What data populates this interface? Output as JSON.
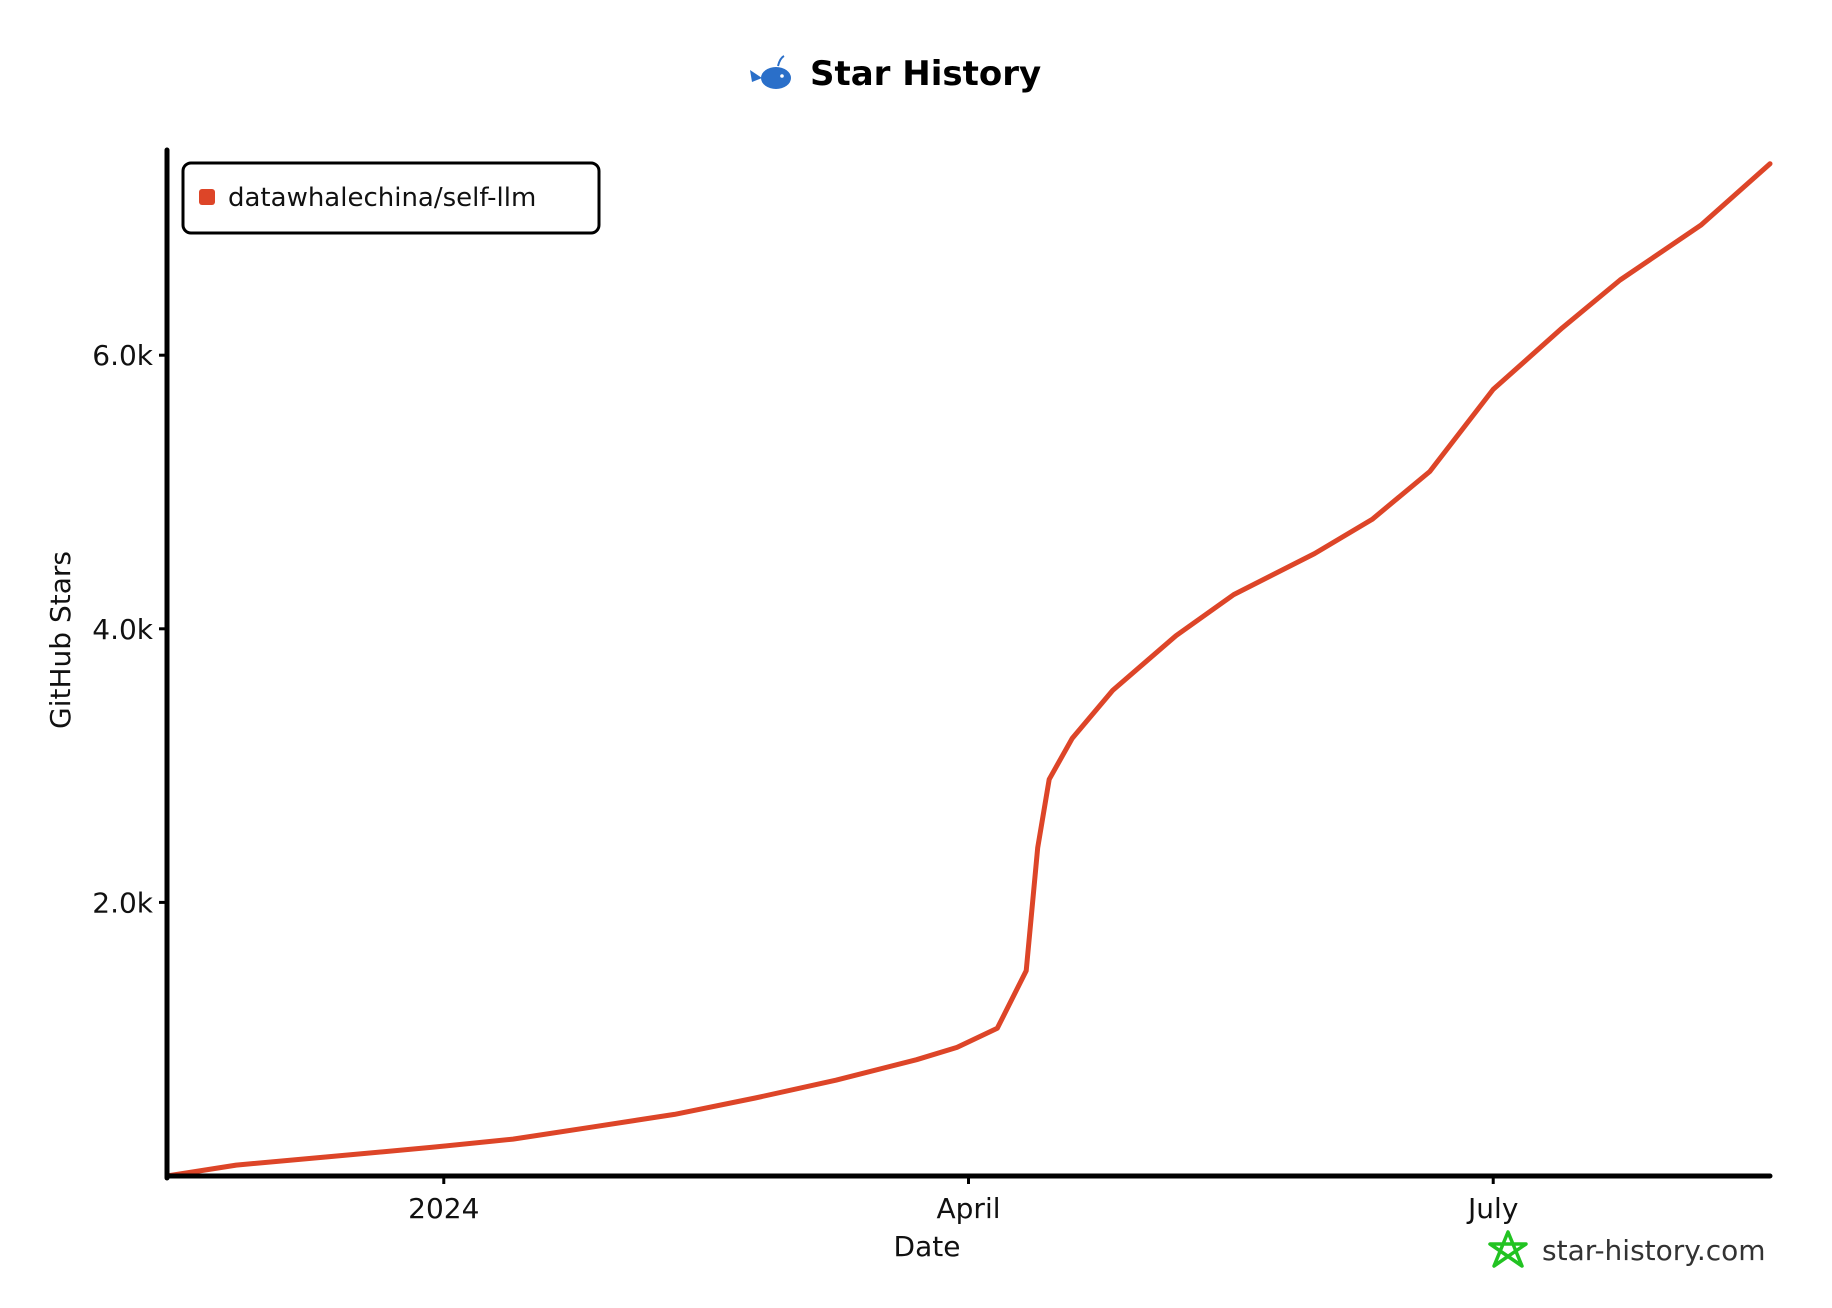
{
  "title": "Star History",
  "watermark": "star-history.com",
  "colors": {
    "series": "#dd4528",
    "axis": "#000000",
    "watermark_icon": "#22c322",
    "whale": "#2a6fc9"
  },
  "chart_data": {
    "type": "line",
    "title": "Star History",
    "xlabel": "Date",
    "ylabel": "GitHub Stars",
    "x_ticks": [
      {
        "label": "2024",
        "date": "2024-01-01"
      },
      {
        "label": "April",
        "date": "2024-04-01"
      },
      {
        "label": "July",
        "date": "2024-07-01"
      }
    ],
    "y_ticks": [
      {
        "label": "2.0k",
        "value": 2000
      },
      {
        "label": "4.0k",
        "value": 4000
      },
      {
        "label": "6.0k",
        "value": 6000
      }
    ],
    "xlim": [
      "2023-11-14",
      "2024-08-18"
    ],
    "ylim": [
      0,
      7500
    ],
    "grid": false,
    "legend_position": "top-left",
    "series": [
      {
        "name": "datawhalechina/self-llm",
        "color": "#dd4528",
        "points": [
          [
            "2023-11-14",
            0
          ],
          [
            "2023-11-26",
            80
          ],
          [
            "2023-12-12",
            140
          ],
          [
            "2023-12-30",
            210
          ],
          [
            "2024-01-13",
            270
          ],
          [
            "2024-01-27",
            360
          ],
          [
            "2024-02-10",
            450
          ],
          [
            "2024-02-24",
            570
          ],
          [
            "2024-03-09",
            700
          ],
          [
            "2024-03-23",
            850
          ],
          [
            "2024-03-30",
            940
          ],
          [
            "2024-04-06",
            1080
          ],
          [
            "2024-04-11",
            1500
          ],
          [
            "2024-04-13",
            2400
          ],
          [
            "2024-04-15",
            2900
          ],
          [
            "2024-04-19",
            3200
          ],
          [
            "2024-04-26",
            3550
          ],
          [
            "2024-05-07",
            3950
          ],
          [
            "2024-05-17",
            4250
          ],
          [
            "2024-05-31",
            4550
          ],
          [
            "2024-06-10",
            4800
          ],
          [
            "2024-06-20",
            5150
          ],
          [
            "2024-07-01",
            5750
          ],
          [
            "2024-07-13",
            6200
          ],
          [
            "2024-07-23",
            6550
          ],
          [
            "2024-08-06",
            6950
          ],
          [
            "2024-08-18",
            7400
          ]
        ]
      }
    ]
  }
}
